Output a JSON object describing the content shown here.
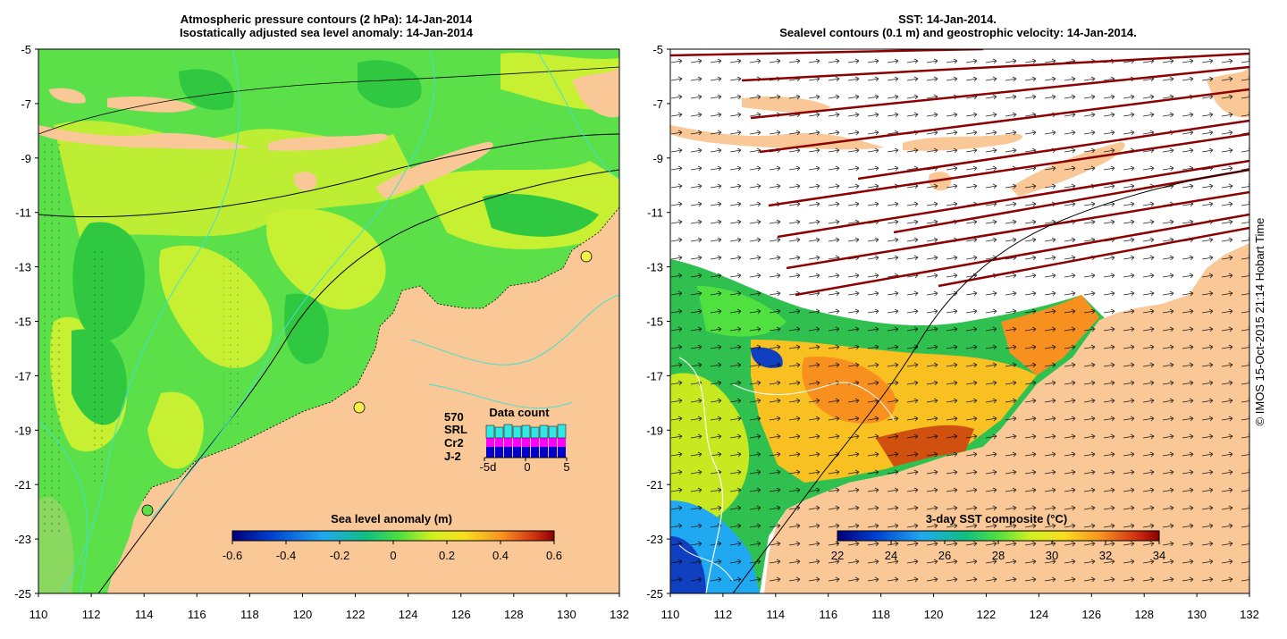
{
  "left_panel": {
    "title_line1": "Atmospheric pressure contours (2 hPa): 14-Jan-2014",
    "title_line2": "Isostatically adjusted sea level anomaly: 14-Jan-2014",
    "colorbar": {
      "label": "Sea level anomaly (m)",
      "ticks": [
        "-0.6",
        "-0.4",
        "-0.2",
        "0",
        "0.2",
        "0.4",
        "0.6"
      ]
    },
    "data_count": {
      "title": "Data count",
      "total": "570",
      "missions": [
        {
          "label": "SRL",
          "color": "#33e6e6"
        },
        {
          "label": "Cr2",
          "color": "#ff00ff"
        },
        {
          "label": "J-2",
          "color": "#0000cc"
        }
      ],
      "axis_ticks": [
        "-5d",
        "0",
        "5"
      ]
    }
  },
  "right_panel": {
    "title_line1": "SST: 14-Jan-2014.",
    "title_line2": "Sealevel contours (0.1 m) and geostrophic velocity: 14-Jan-2014.",
    "colorbar": {
      "label": "3-day SST composite (°C)",
      "ticks": [
        "22",
        "24",
        "26",
        "28",
        "30",
        "32",
        "34"
      ]
    }
  },
  "axes": {
    "lat_ticks": [
      "-5",
      "-7",
      "-9",
      "-11",
      "-13",
      "-15",
      "-17",
      "-19",
      "-21",
      "-23",
      "-25"
    ],
    "lon_ticks": [
      "110",
      "112",
      "114",
      "116",
      "118",
      "120",
      "122",
      "124",
      "126",
      "128",
      "130",
      "132"
    ]
  },
  "credit": "© IMOS 15-Oct-2015 21:14 Hobart Time",
  "colors": {
    "land": "#fac896",
    "ocean_anomaly_green": "#5ce04a",
    "ocean_anomaly_yellow": "#c8f032",
    "altimeter_track": "#8b0000",
    "contour_cyan": "#40e0d0"
  }
}
